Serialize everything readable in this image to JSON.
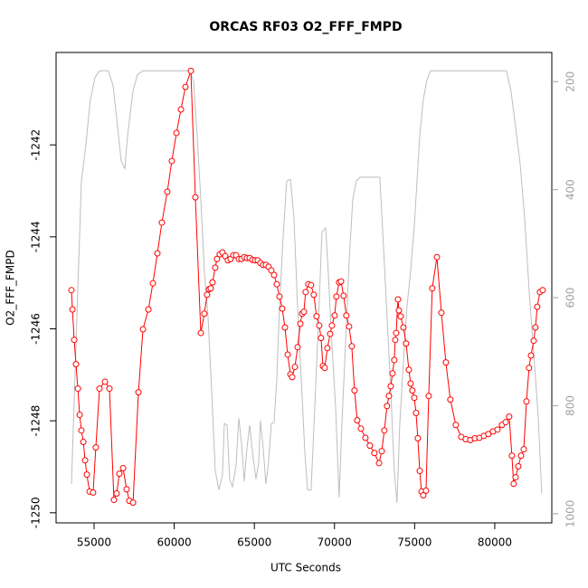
{
  "chart_data": {
    "type": "line",
    "title": "ORCAS RF03 O2_FFF_FMPD",
    "x_label": "UTC Seconds",
    "y_label": "O2_FFF_FMPD",
    "xlim": [
      52630,
      83560
    ],
    "ylim": [
      -1250.22,
      -1239.99
    ],
    "y2lim": [
      1017,
      146
    ],
    "xticks": [
      55000,
      60000,
      65000,
      70000,
      75000,
      80000
    ],
    "yticks": [
      -1250,
      -1248,
      -1246,
      -1244,
      -1242
    ],
    "y2ticks": [
      200,
      400,
      600,
      800,
      1000
    ],
    "axis_color_y2": "#a0a0a0",
    "series": [
      {
        "color": "#bebebe",
        "axis": "y2",
        "markers": false,
        "x": [
          53590,
          53930,
          54210,
          54490,
          54770,
          55060,
          55340,
          55900,
          56190,
          56470,
          56690,
          56920,
          57090,
          57430,
          57710,
          58050,
          60980,
          61210,
          61430,
          61660,
          61880,
          62110,
          62330,
          62560,
          62790,
          63010,
          63130,
          63300,
          63460,
          63630,
          63860,
          64030,
          64200,
          64370,
          64540,
          64710,
          64880,
          65100,
          65270,
          65380,
          65550,
          65720,
          65890,
          66060,
          66230,
          66400,
          66570,
          66800,
          67020,
          67250,
          67470,
          67700,
          67930,
          68150,
          68320,
          68540,
          68770,
          68990,
          69220,
          69450,
          69610,
          69840,
          70070,
          70290,
          70460,
          70690,
          70910,
          71140,
          71360,
          71590,
          72830,
          73050,
          73280,
          73510,
          73730,
          73900,
          74070,
          74300,
          74520,
          74750,
          74980,
          75150,
          75320,
          75540,
          75770,
          75990,
          80730,
          81010,
          81300,
          81580,
          81860,
          82140,
          82430,
          82710,
          82930
        ],
        "values": [
          945,
          635,
          384,
          317,
          233,
          192,
          180,
          180,
          208,
          284,
          347,
          361,
          300,
          217,
          187,
          180,
          180,
          200,
          300,
          418,
          551,
          635,
          769,
          920,
          956,
          928,
          833,
          836,
          936,
          950,
          911,
          823,
          869,
          940,
          878,
          836,
          886,
          936,
          906,
          828,
          878,
          945,
          903,
          833,
          831,
          752,
          618,
          485,
          384,
          381,
          451,
          618,
          752,
          886,
          956,
          956,
          803,
          652,
          478,
          471,
          551,
          685,
          803,
          970,
          836,
          685,
          535,
          418,
          384,
          377,
          377,
          501,
          635,
          769,
          920,
          980,
          836,
          719,
          618,
          551,
          468,
          384,
          300,
          233,
          197,
          180,
          180,
          217,
          284,
          351,
          451,
          585,
          702,
          819,
          962
        ]
      },
      {
        "color": "#ff0000",
        "markers": true,
        "x": [
          53590,
          53650,
          53760,
          53870,
          53990,
          54100,
          54210,
          54330,
          54440,
          54550,
          54720,
          54940,
          55110,
          55340,
          55680,
          55960,
          56240,
          56410,
          56580,
          56810,
          57030,
          57200,
          57430,
          57770,
          58050,
          58390,
          58670,
          58950,
          59230,
          59570,
          59850,
          60140,
          60420,
          60700,
          61040,
          61320,
          61660,
          61880,
          62050,
          62170,
          62280,
          62390,
          62560,
          62670,
          62840,
          63010,
          63180,
          63350,
          63520,
          63690,
          63860,
          64030,
          64200,
          64370,
          64540,
          64710,
          64880,
          65040,
          65210,
          65380,
          65550,
          65720,
          65890,
          66060,
          66230,
          66400,
          66570,
          66740,
          66910,
          67080,
          67250,
          67360,
          67530,
          67700,
          67870,
          67980,
          68090,
          68200,
          68370,
          68540,
          68710,
          68880,
          69050,
          69160,
          69280,
          69390,
          69560,
          69730,
          69840,
          70010,
          70120,
          70290,
          70410,
          70570,
          70740,
          70910,
          71080,
          71250,
          71420,
          71650,
          71930,
          72210,
          72490,
          72780,
          72950,
          73110,
          73280,
          73400,
          73510,
          73620,
          73730,
          73790,
          73850,
          73960,
          74020,
          74130,
          74300,
          74470,
          74640,
          74750,
          74860,
          74980,
          75090,
          75200,
          75320,
          75430,
          75540,
          75710,
          75880,
          76100,
          76390,
          76670,
          76950,
          77230,
          77570,
          77910,
          78190,
          78470,
          78760,
          79040,
          79320,
          79600,
          79890,
          80170,
          80450,
          80680,
          80900,
          81070,
          81180,
          81300,
          81470,
          81640,
          81810,
          81980,
          82140,
          82260,
          82430,
          82540,
          82650,
          82820,
          82990
        ],
        "values": [
          -1245.16,
          -1245.58,
          -1246.24,
          -1246.77,
          -1247.3,
          -1247.87,
          -1248.21,
          -1248.46,
          -1248.86,
          -1249.17,
          -1249.54,
          -1249.56,
          -1248.58,
          -1247.3,
          -1247.15,
          -1247.3,
          -1249.72,
          -1249.58,
          -1249.15,
          -1249.03,
          -1249.49,
          -1249.74,
          -1249.78,
          -1247.38,
          -1246.01,
          -1245.58,
          -1245.01,
          -1244.36,
          -1243.69,
          -1243.02,
          -1242.35,
          -1241.74,
          -1241.23,
          -1240.74,
          -1240.39,
          -1243.14,
          -1246.09,
          -1245.67,
          -1245.26,
          -1245.14,
          -1245.12,
          -1244.99,
          -1244.67,
          -1244.48,
          -1244.38,
          -1244.34,
          -1244.42,
          -1244.51,
          -1244.48,
          -1244.4,
          -1244.4,
          -1244.48,
          -1244.48,
          -1244.44,
          -1244.46,
          -1244.46,
          -1244.5,
          -1244.51,
          -1244.51,
          -1244.57,
          -1244.61,
          -1244.61,
          -1244.65,
          -1244.73,
          -1244.83,
          -1245.03,
          -1245.3,
          -1245.56,
          -1245.97,
          -1246.56,
          -1246.99,
          -1247.05,
          -1246.83,
          -1246.4,
          -1245.89,
          -1245.67,
          -1245.63,
          -1245.2,
          -1245.03,
          -1245.05,
          -1245.26,
          -1245.73,
          -1245.93,
          -1246.2,
          -1246.81,
          -1246.85,
          -1246.42,
          -1246.11,
          -1245.93,
          -1245.71,
          -1245.3,
          -1244.99,
          -1244.97,
          -1245.28,
          -1245.71,
          -1245.95,
          -1246.38,
          -1247.34,
          -1247.99,
          -1248.17,
          -1248.37,
          -1248.54,
          -1248.7,
          -1248.92,
          -1248.66,
          -1248.21,
          -1247.68,
          -1247.46,
          -1247.25,
          -1246.97,
          -1246.68,
          -1246.24,
          -1246.09,
          -1245.36,
          -1245.6,
          -1245.73,
          -1245.97,
          -1246.32,
          -1246.89,
          -1247.19,
          -1247.34,
          -1247.5,
          -1247.83,
          -1248.38,
          -1249.09,
          -1249.54,
          -1249.62,
          -1249.52,
          -1247.46,
          -1245.12,
          -1244.44,
          -1245.65,
          -1246.73,
          -1247.54,
          -1248.09,
          -1248.35,
          -1248.4,
          -1248.42,
          -1248.38,
          -1248.37,
          -1248.33,
          -1248.29,
          -1248.23,
          -1248.19,
          -1248.09,
          -1248.03,
          -1247.91,
          -1248.76,
          -1249.37,
          -1249.23,
          -1248.99,
          -1248.76,
          -1248.62,
          -1247.58,
          -1246.85,
          -1246.58,
          -1246.26,
          -1245.97,
          -1245.52,
          -1245.2,
          -1245.16
        ]
      }
    ]
  }
}
